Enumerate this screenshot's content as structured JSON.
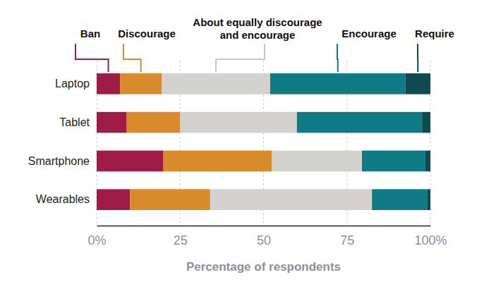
{
  "chart_data": {
    "type": "bar",
    "orientation": "horizontal",
    "stacked": true,
    "grid": true,
    "legend": "top",
    "xlabel": "Percentage of respondents",
    "categories": [
      "Laptop",
      "Tablet",
      "Smartphone",
      "Wearables"
    ],
    "xlim": [
      0,
      100
    ],
    "xticks": [
      {
        "value": 0,
        "label": "0%"
      },
      25,
      50,
      75,
      {
        "value": 100,
        "label": "100%"
      }
    ],
    "series": [
      {
        "name": "Ban",
        "color": "#9e1c45",
        "values": [
          7,
          9,
          20,
          10
        ]
      },
      {
        "name": "Discourage",
        "color": "#d98b2b",
        "values": [
          12.5,
          16,
          32.5,
          24
        ]
      },
      {
        "name": "About equally discourage and encourage",
        "color": "#d4d2cf",
        "values": [
          32.5,
          35,
          27,
          48.5
        ]
      },
      {
        "name": "Encourage",
        "color": "#0e7b86",
        "values": [
          40.5,
          37.5,
          19,
          16.5
        ]
      },
      {
        "name": "Require",
        "color": "#0d4a52",
        "values": [
          7.5,
          2.5,
          1.5,
          1
        ]
      }
    ]
  }
}
